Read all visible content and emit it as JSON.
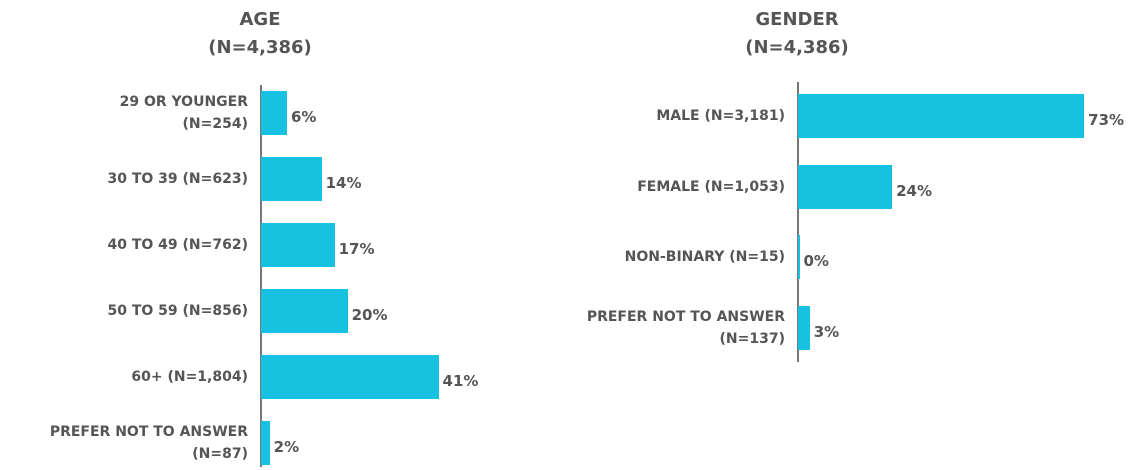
{
  "chart_data": [
    {
      "type": "bar",
      "title": "AGE",
      "subtitle": "(N=4,386)",
      "color": "#17c1e0",
      "categories": [
        "29 OR YOUNGER\n(N=254)",
        "30 TO 39 (N=623)",
        "40 TO 49 (N=762)",
        "50 TO 59 (N=856)",
        "60+ (N=1,804)",
        "PREFER NOT TO ANSWER\n(N=87)"
      ],
      "values": [
        6,
        14,
        17,
        20,
        41,
        2
      ],
      "value_labels": [
        "6%",
        "14%",
        "17%",
        "20%",
        "41%",
        "2%"
      ]
    },
    {
      "type": "bar",
      "title": "GENDER",
      "subtitle": "(N=4,386)",
      "color": "#17c1e0",
      "categories": [
        "MALE (N=3,181)",
        "FEMALE (N=1,053)",
        "NON-BINARY (N=15)",
        "PREFER NOT TO ANSWER\n(N=137)"
      ],
      "values": [
        73,
        24,
        0,
        3
      ],
      "value_labels": [
        "73%",
        "24%",
        "0%",
        "3%"
      ]
    }
  ]
}
